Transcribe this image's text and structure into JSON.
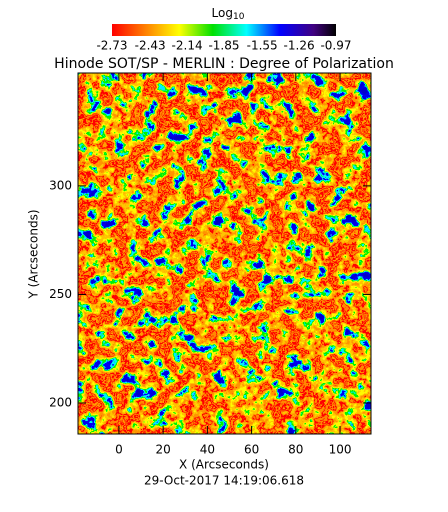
{
  "chart_data": {
    "type": "image",
    "title": "Hinode SOT/SP - MERLIN : Degree of Polarization",
    "colorbar_title": {
      "base": "Log",
      "subscript": "10"
    },
    "clim": [
      -2.73,
      -0.97
    ],
    "cticks": [
      -2.73,
      -2.43,
      -2.14,
      -1.85,
      -1.55,
      -1.26,
      -0.97
    ],
    "xlabel": "X (Arcseconds)",
    "ylabel": "Y (Arcseconds)",
    "xlim": [
      -18.5,
      114
    ],
    "ylim": [
      185.7,
      352
    ],
    "xticks": [
      0,
      20,
      40,
      60,
      80,
      100
    ],
    "yticks": [
      200,
      250,
      300
    ],
    "footer": "29-Oct-2017 14:19:06.618"
  }
}
